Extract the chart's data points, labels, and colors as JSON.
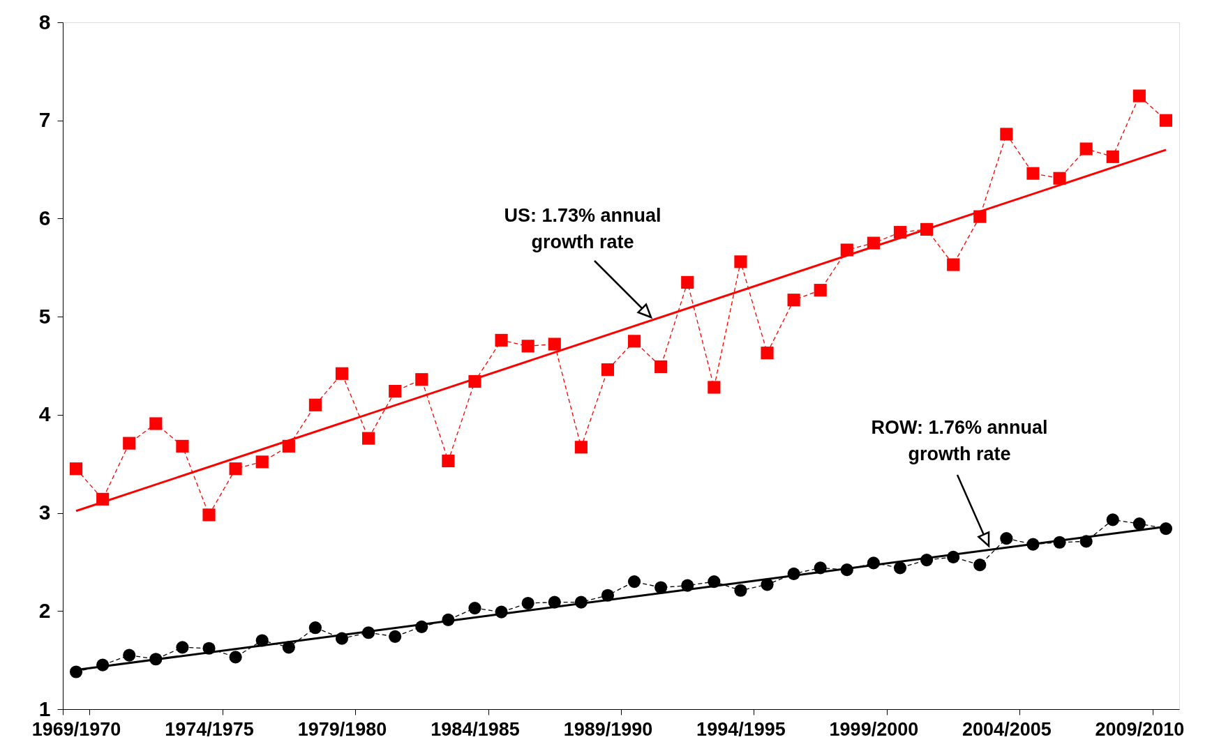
{
  "chart_data": {
    "type": "line",
    "categories": [
      "1969/1970",
      null,
      null,
      null,
      null,
      "1974/1975",
      null,
      null,
      null,
      null,
      "1979/1980",
      null,
      null,
      null,
      null,
      "1984/1985",
      null,
      null,
      null,
      null,
      "1989/1990",
      null,
      null,
      null,
      null,
      "1994/1995",
      null,
      null,
      null,
      null,
      "1999/2000",
      null,
      null,
      null,
      null,
      "2004/2005",
      null,
      null,
      null,
      null,
      "2009/2010",
      null
    ],
    "series": [
      {
        "color": "#ff0000",
        "marker": "square",
        "line_style": "dashed",
        "values": [
          3.45,
          3.14,
          3.71,
          3.91,
          3.68,
          2.98,
          3.45,
          3.52,
          3.68,
          4.1,
          4.42,
          3.76,
          4.24,
          4.36,
          3.53,
          4.34,
          4.76,
          4.7,
          4.72,
          3.67,
          4.46,
          4.75,
          4.49,
          5.35,
          4.28,
          5.56,
          4.63,
          5.17,
          5.27,
          5.68,
          5.75,
          5.86,
          5.89,
          5.53,
          6.02,
          6.86,
          6.46,
          6.41,
          6.71,
          6.63,
          7.25,
          7.0
        ]
      },
      {
        "color": "#ff0000",
        "marker": "none",
        "line_style": "solid",
        "values": [
          3.02,
          null,
          null,
          null,
          null,
          null,
          null,
          null,
          null,
          null,
          null,
          null,
          null,
          null,
          null,
          null,
          null,
          null,
          null,
          null,
          null,
          null,
          null,
          null,
          null,
          null,
          null,
          null,
          null,
          null,
          null,
          null,
          null,
          null,
          null,
          null,
          null,
          null,
          null,
          null,
          null,
          6.7
        ]
      },
      {
        "color": "#000000",
        "marker": "circle",
        "line_style": "dashed",
        "values": [
          1.38,
          1.45,
          1.55,
          1.51,
          1.63,
          1.62,
          1.53,
          1.7,
          1.63,
          1.83,
          1.72,
          1.78,
          1.74,
          1.84,
          1.91,
          2.03,
          1.99,
          2.08,
          2.09,
          2.09,
          2.16,
          2.3,
          2.24,
          2.26,
          2.3,
          2.21,
          2.27,
          2.38,
          2.44,
          2.42,
          2.49,
          2.44,
          2.52,
          2.55,
          2.47,
          2.74,
          2.68,
          2.7,
          2.71,
          2.93,
          2.89,
          2.84
        ]
      },
      {
        "color": "#000000",
        "marker": "none",
        "line_style": "solid",
        "values": [
          1.4,
          null,
          null,
          null,
          null,
          null,
          null,
          null,
          null,
          null,
          null,
          null,
          null,
          null,
          null,
          null,
          null,
          null,
          null,
          null,
          null,
          null,
          null,
          null,
          null,
          null,
          null,
          null,
          null,
          null,
          null,
          null,
          null,
          null,
          null,
          null,
          null,
          null,
          null,
          null,
          null,
          2.86
        ]
      }
    ],
    "ylim": [
      1,
      8
    ],
    "yticks": [
      1,
      2,
      3,
      4,
      5,
      6,
      7,
      8
    ],
    "grid": false,
    "annotations": [
      "US: 1.73% annual\ngrowth rate",
      "ROW: 1.76% annual\ngrowth rate"
    ]
  }
}
